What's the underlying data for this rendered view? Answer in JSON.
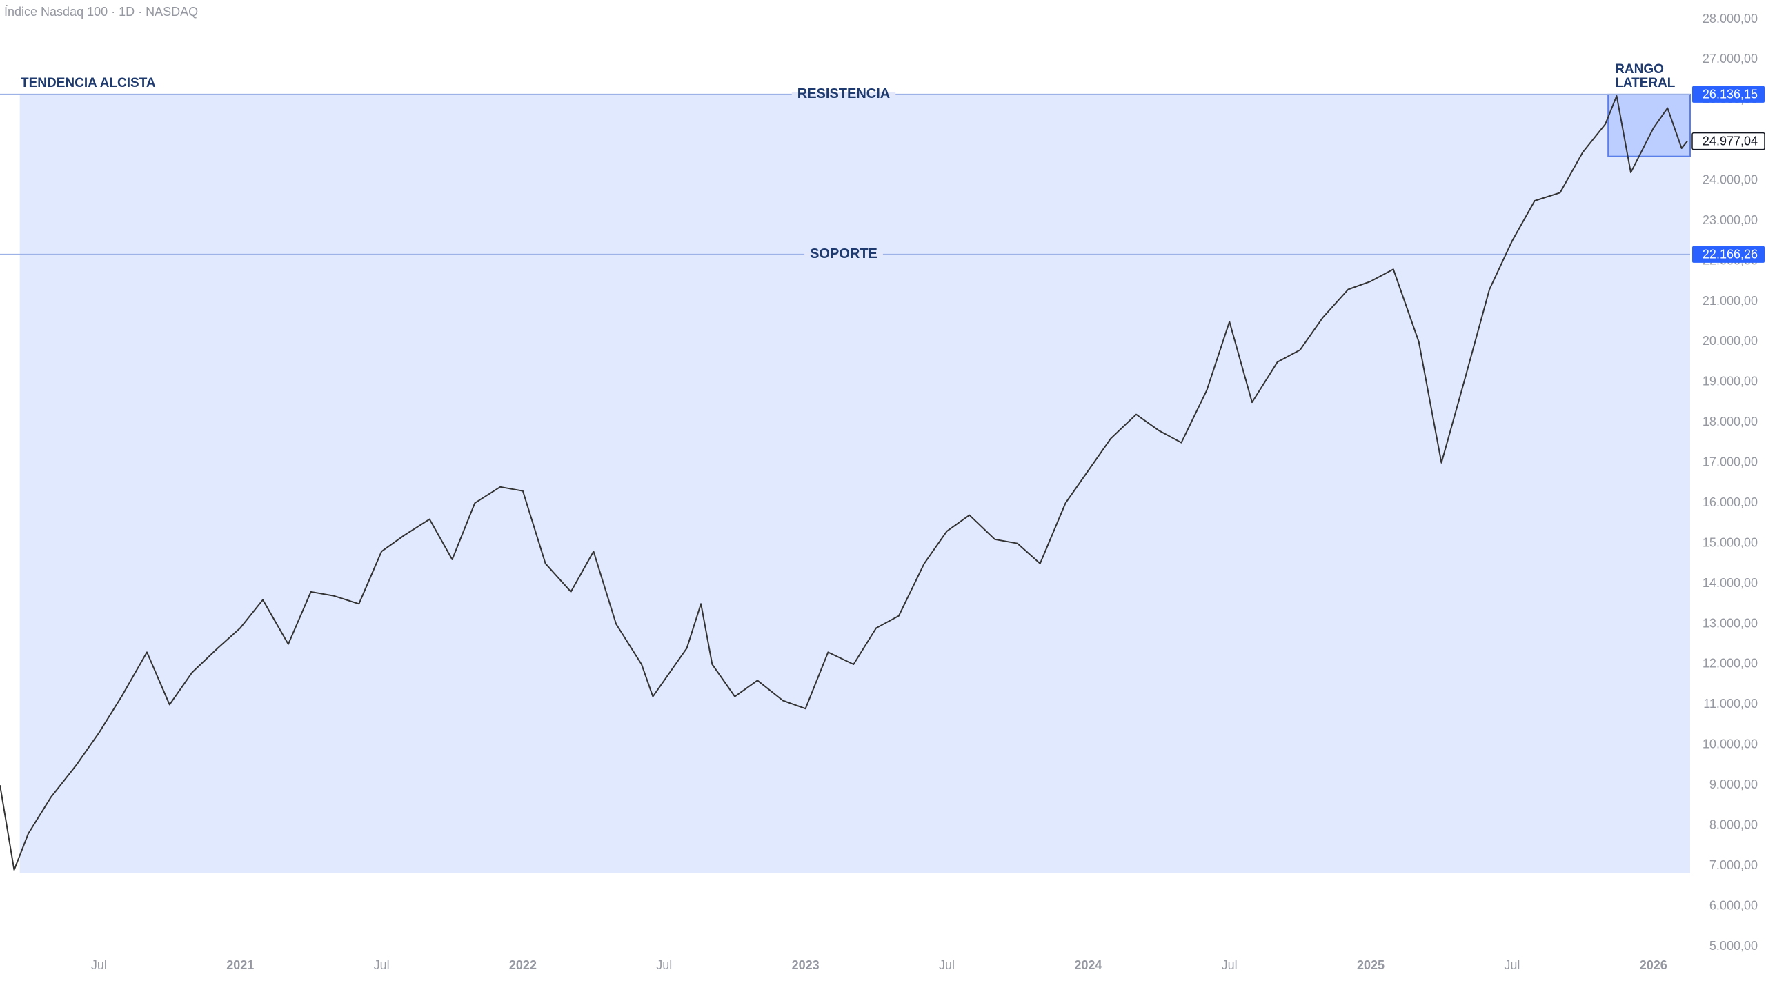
{
  "chart_data": {
    "type": "line",
    "title": "Índice Nasdaq 100 · 1D · NASDAQ",
    "xlim": [
      2020.15,
      2026.13
    ],
    "xticks": [
      {
        "value": 2020.5,
        "label": "Jul"
      },
      {
        "value": 2021,
        "label": "2021"
      },
      {
        "value": 2021.5,
        "label": "Jul"
      },
      {
        "value": 2022,
        "label": "2022"
      },
      {
        "value": 2022.5,
        "label": "Jul"
      },
      {
        "value": 2023,
        "label": "2023"
      },
      {
        "value": 2023.5,
        "label": "Jul"
      },
      {
        "value": 2024,
        "label": "2024"
      },
      {
        "value": 2024.5,
        "label": "Jul"
      },
      {
        "value": 2025,
        "label": "2025"
      },
      {
        "value": 2025.5,
        "label": "Jul"
      },
      {
        "value": 2026,
        "label": "2026"
      }
    ],
    "ylim": [
      5000,
      28000
    ],
    "yticks": [
      {
        "value": 5000,
        "label": "5.000,00"
      },
      {
        "value": 6000,
        "label": "6.000,00"
      },
      {
        "value": 7000,
        "label": "7.000,00"
      },
      {
        "value": 8000,
        "label": "8.000,00"
      },
      {
        "value": 9000,
        "label": "9.000,00"
      },
      {
        "value": 10000,
        "label": "10.000,00"
      },
      {
        "value": 11000,
        "label": "11.000,00"
      },
      {
        "value": 12000,
        "label": "12.000,00"
      },
      {
        "value": 13000,
        "label": "13.000,00"
      },
      {
        "value": 14000,
        "label": "14.000,00"
      },
      {
        "value": 15000,
        "label": "15.000,00"
      },
      {
        "value": 16000,
        "label": "16.000,00"
      },
      {
        "value": 17000,
        "label": "17.000,00"
      },
      {
        "value": 18000,
        "label": "18.000,00"
      },
      {
        "value": 19000,
        "label": "19.000,00"
      },
      {
        "value": 20000,
        "label": "20.000,00"
      },
      {
        "value": 21000,
        "label": "21.000,00"
      },
      {
        "value": 22000,
        "label": "22.000,00"
      },
      {
        "value": 23000,
        "label": "23.000,00"
      },
      {
        "value": 24000,
        "label": "24.000,00"
      },
      {
        "value": 25000,
        "label": "25.000,00"
      },
      {
        "value": 26000,
        "label": "26.000,00"
      },
      {
        "value": 27000,
        "label": "27.000,00"
      },
      {
        "value": 28000,
        "label": "28.000,00"
      }
    ],
    "series": [
      {
        "color": "#333333",
        "x": [
          2020.15,
          2020.2,
          2020.25,
          2020.33,
          2020.42,
          2020.5,
          2020.58,
          2020.67,
          2020.75,
          2020.83,
          2020.92,
          2021.0,
          2021.08,
          2021.17,
          2021.25,
          2021.33,
          2021.42,
          2021.5,
          2021.58,
          2021.67,
          2021.75,
          2021.83,
          2021.92,
          2022.0,
          2022.08,
          2022.17,
          2022.25,
          2022.33,
          2022.42,
          2022.46,
          2022.58,
          2022.63,
          2022.67,
          2022.75,
          2022.83,
          2022.92,
          2023.0,
          2023.08,
          2023.17,
          2023.25,
          2023.33,
          2023.42,
          2023.5,
          2023.58,
          2023.67,
          2023.75,
          2023.83,
          2023.92,
          2024.0,
          2024.08,
          2024.17,
          2024.25,
          2024.33,
          2024.42,
          2024.5,
          2024.58,
          2024.67,
          2024.75,
          2024.83,
          2024.92,
          2025.0,
          2025.08,
          2025.17,
          2025.25,
          2025.33,
          2025.42,
          2025.5,
          2025.58,
          2025.67,
          2025.75,
          2025.83,
          2025.87,
          2025.92,
          2026.0,
          2026.05,
          2026.1,
          2026.12
        ],
        "values": [
          9000,
          6900,
          7800,
          8700,
          9500,
          10300,
          11200,
          12300,
          11000,
          11800,
          12400,
          12900,
          13600,
          12500,
          13800,
          13700,
          13500,
          14800,
          15200,
          15600,
          14600,
          16000,
          16400,
          16300,
          14500,
          13800,
          14800,
          13000,
          12000,
          11200,
          12400,
          13500,
          12000,
          11200,
          11600,
          11100,
          10900,
          12300,
          12000,
          12900,
          13200,
          14500,
          15300,
          15700,
          15100,
          15000,
          14500,
          16000,
          16800,
          17600,
          18200,
          17800,
          17500,
          18800,
          20500,
          18500,
          19500,
          19800,
          20600,
          21300,
          21500,
          21800,
          20000,
          17000,
          19000,
          21300,
          22500,
          23500,
          23700,
          24700,
          25400,
          26100,
          24200,
          25300,
          25800,
          24800,
          24977.04
        ]
      }
    ],
    "levels": [
      {
        "name": "RESISTENCIA",
        "price": {
          "value": 26136.15,
          "label": "26.136,15"
        }
      },
      {
        "name": "SOPORTE",
        "price": {
          "value": 22166.26,
          "label": "22.166,26"
        }
      }
    ],
    "last_price": {
      "value": 24977.04,
      "label": "24.977,04"
    },
    "zones": [
      {
        "label": [
          "TENDENCIA ALCISTA"
        ],
        "xrange": [
          2020.22,
          2026.13
        ],
        "yrange": [
          6830,
          26136.15
        ]
      },
      {
        "label": [
          "RANGO",
          "LATERAL"
        ],
        "xrange": [
          2025.84,
          2026.13
        ],
        "yrange": [
          24600,
          26136.15
        ]
      }
    ]
  }
}
